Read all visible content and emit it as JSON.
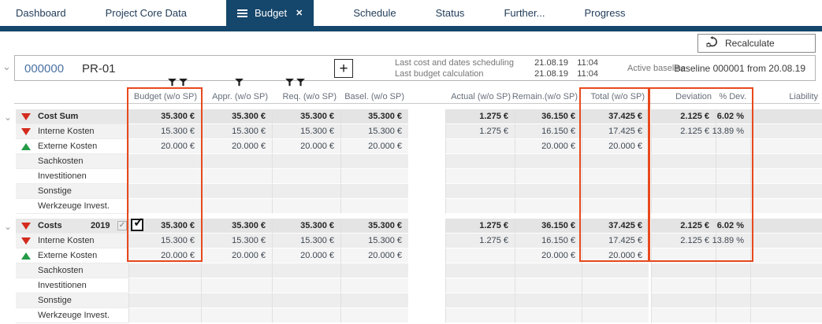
{
  "icons": {
    "close": "✕",
    "chevron_down": "⌄",
    "plus": "+",
    "check": "✓"
  },
  "colors": {
    "accent_navy": "#15466b",
    "highlight_orange": "#e8491d",
    "negative_red": "#d32b1e",
    "positive_green": "#259b48",
    "project_id_blue": "#4a72a3"
  },
  "tabs": {
    "items": [
      {
        "label": "Dashboard",
        "active": false
      },
      {
        "label": "Project Core Data",
        "active": false
      },
      {
        "label": "Budget",
        "active": true
      },
      {
        "label": "Schedule",
        "active": false
      },
      {
        "label": "Status",
        "active": false
      },
      {
        "label": "Further...",
        "active": false
      },
      {
        "label": "Progress",
        "active": false
      }
    ]
  },
  "toolbar": {
    "recalculate": "Recalculate"
  },
  "project": {
    "id": "000000",
    "name": "PR-01",
    "info_rows": [
      {
        "label": "Last cost and dates scheduling",
        "date": "21.08.19",
        "time": "11:04"
      },
      {
        "label": "Last budget calculation",
        "date": "21.08.19",
        "time": "11:04"
      }
    ],
    "active_baseline_label": "Active baseline",
    "baseline_value": "Baseline 000001 from 20.08.19"
  },
  "table": {
    "filter_icons": {
      "budget": 2,
      "appr": 1,
      "req": 2
    },
    "columns": [
      "Budget (w/o SP)",
      "Appr. (w/o SP)",
      "Req. (w/o SP)",
      "Basel. (w/o SP)",
      "Actual (w/o SP)",
      "Remain.(w/o SP)",
      "Total (w/o SP)",
      "Deviation",
      "% Dev.",
      "Liability"
    ],
    "column_keys": [
      "budget",
      "appr",
      "req",
      "basel",
      "actual",
      "remain",
      "total",
      "deviation",
      "pdev",
      "liability"
    ],
    "highlighted_columns": [
      "Budget (w/o SP)",
      "Total (w/o SP)",
      "Deviation",
      "% Dev."
    ],
    "groups": [
      {
        "label": "Cost Sum",
        "trend": "down",
        "values": [
          "35.300 €",
          "35.300 €",
          "35.300 €",
          "35.300 €",
          "1.275 €",
          "36.150 €",
          "37.425 €",
          "2.125 €",
          "6.02 %",
          ""
        ],
        "rows": [
          {
            "label": "Interne Kosten",
            "trend": "down",
            "values": [
              "15.300 €",
              "15.300 €",
              "15.300 €",
              "15.300 €",
              "1.275 €",
              "16.150 €",
              "17.425 €",
              "2.125 €",
              "13.89 %",
              ""
            ]
          },
          {
            "label": "Externe Kosten",
            "trend": "up",
            "values": [
              "20.000 €",
              "20.000 €",
              "20.000 €",
              "20.000 €",
              "",
              "20.000 €",
              "20.000 €",
              "",
              "",
              ""
            ]
          },
          {
            "label": "Sachkosten",
            "trend": "",
            "values": [
              "",
              "",
              "",
              "",
              "",
              "",
              "",
              "",
              "",
              ""
            ]
          },
          {
            "label": "Investitionen",
            "trend": "",
            "values": [
              "",
              "",
              "",
              "",
              "",
              "",
              "",
              "",
              "",
              ""
            ]
          },
          {
            "label": "Sonstige",
            "trend": "",
            "values": [
              "",
              "",
              "",
              "",
              "",
              "",
              "",
              "",
              "",
              ""
            ]
          },
          {
            "label": "Werkzeuge Invest.",
            "trend": "",
            "values": [
              "",
              "",
              "",
              "",
              "",
              "",
              "",
              "",
              "",
              ""
            ]
          }
        ]
      },
      {
        "label": "Costs",
        "year": "2019",
        "trend": "down",
        "values": [
          "35.300 €",
          "35.300 €",
          "35.300 €",
          "35.300 €",
          "1.275 €",
          "36.150 €",
          "37.425 €",
          "2.125 €",
          "6.02 %",
          ""
        ],
        "rows": [
          {
            "label": "Interne Kosten",
            "trend": "down",
            "values": [
              "15.300 €",
              "15.300 €",
              "15.300 €",
              "15.300 €",
              "1.275 €",
              "16.150 €",
              "17.425 €",
              "2.125 €",
              "13.89 %",
              ""
            ]
          },
          {
            "label": "Externe Kosten",
            "trend": "up",
            "values": [
              "20.000 €",
              "20.000 €",
              "20.000 €",
              "20.000 €",
              "",
              "20.000 €",
              "20.000 €",
              "",
              "",
              ""
            ]
          },
          {
            "label": "Sachkosten",
            "trend": "",
            "values": [
              "",
              "",
              "",
              "",
              "",
              "",
              "",
              "",
              "",
              ""
            ]
          },
          {
            "label": "Investitionen",
            "trend": "",
            "values": [
              "",
              "",
              "",
              "",
              "",
              "",
              "",
              "",
              "",
              ""
            ]
          },
          {
            "label": "Sonstige",
            "trend": "",
            "values": [
              "",
              "",
              "",
              "",
              "",
              "",
              "",
              "",
              "",
              ""
            ]
          },
          {
            "label": "Werkzeuge Invest.",
            "trend": "",
            "values": [
              "",
              "",
              "",
              "",
              "",
              "",
              "",
              "",
              "",
              ""
            ]
          }
        ]
      }
    ]
  }
}
